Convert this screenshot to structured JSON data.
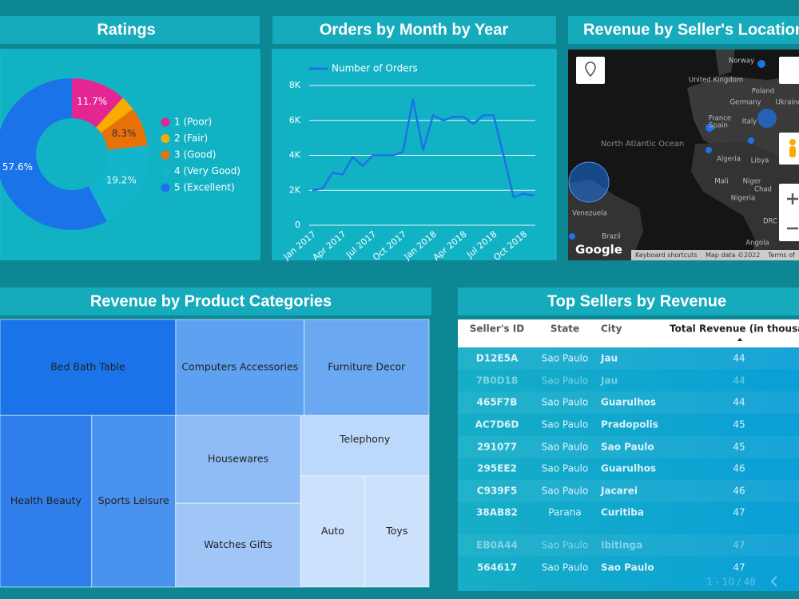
{
  "chart_data": [
    {
      "type": "pie",
      "title": "Ratings",
      "categories": [
        "1 (Poor)",
        "2 (Fair)",
        "3 (Good)",
        "4 (Very Good)",
        "5 (Excellent)"
      ],
      "values": [
        11.7,
        3.2,
        8.3,
        19.2,
        57.6
      ],
      "value_labels": [
        "11.7%",
        null,
        "8.3%",
        "19.2%",
        "57.6%"
      ],
      "colors": [
        "#e52592",
        "#f9ab00",
        "#e8710a",
        "#12b5cb",
        "#1a73e8"
      ],
      "donut": true
    },
    {
      "type": "line",
      "title": "Orders by Month by Year",
      "categories": [
        "Jan 2017",
        null,
        null,
        "Apr 2017",
        null,
        null,
        "Jul 2017",
        null,
        null,
        "Oct 2017",
        null,
        null,
        "Jan 2018",
        null,
        null,
        "Apr 2018",
        null,
        null,
        "Jul 2018",
        null,
        null,
        "Oct 2018",
        null
      ],
      "series": [
        {
          "name": "Number of Orders",
          "color": "#1a73e8",
          "values": [
            2000,
            2100,
            3000,
            2900,
            3900,
            3400,
            4000,
            4000,
            4000,
            4200,
            7200,
            4300,
            6300,
            6000,
            6200,
            6200,
            5800,
            6300,
            6300,
            4000,
            1600,
            1800,
            1700
          ]
        }
      ],
      "ylim": [
        0,
        8000
      ],
      "yticks": [
        0,
        {
          "value": 2000,
          "label": "2K"
        },
        {
          "value": 4000,
          "label": "4K"
        },
        {
          "value": 6000,
          "label": "6K"
        },
        {
          "value": 8000,
          "label": "8K"
        }
      ],
      "grid": true,
      "legend": "top"
    },
    {
      "type": "treemap",
      "title": "Revenue by Product Categories",
      "categories": [
        "Bed Bath Table",
        "Computers Accessories",
        "Furniture Decor",
        "Health Beauty",
        "Sports Leisure",
        "Housewares",
        "Watches Gifts",
        "Telephony",
        "Auto",
        "Toys"
      ],
      "values": [
        26300,
        19200,
        18700,
        24500,
        22400,
        17100,
        16300,
        12100,
        11100,
        11100
      ],
      "colors": [
        "#1a73e8",
        "#5ea1f0",
        "#6aa9f2",
        "#2f80ec",
        "#4a92ef",
        "#8fbcf6",
        "#a0c6f7",
        "#bcd8fa",
        "#cce1fb",
        "#cce1fb"
      ]
    }
  ],
  "map": {
    "title": "Revenue by Seller's Location",
    "labels": [
      "Norway",
      "United Kingdom",
      "Poland",
      "Germany",
      "Ukraine",
      "France",
      "Spain",
      "Italy",
      "North Atlantic Ocean",
      "Algeria",
      "Libya",
      "Mali",
      "Niger",
      "Chad",
      "Nigeria",
      "Venezuela",
      "Brazil",
      "Angola",
      "DRC"
    ],
    "logo": "Google",
    "attribution": [
      "Keyboard shortcuts",
      "Map data ©2022",
      "Terms of"
    ]
  },
  "table": {
    "title": "Top Sellers by Revenue",
    "columns": [
      "Seller's ID",
      "State",
      "City",
      "Total Revenue (in thousand"
    ],
    "rows": [
      [
        "D12E5A",
        "Sao Paulo",
        "Jau",
        "44"
      ],
      [
        "7B0D18",
        "Sao Paulo",
        "Jau",
        "44"
      ],
      [
        "465F7B",
        "Sao Paulo",
        "Guarulhos",
        "44"
      ],
      [
        "AC7D6D",
        "Sao Paulo",
        "Pradopolis",
        "45"
      ],
      [
        "291077",
        "Sao Paulo",
        "Sao Paulo",
        "45"
      ],
      [
        "295EE2",
        "Sao Paulo",
        "Guarulhos",
        "46"
      ],
      [
        "C939F5",
        "Sao Paulo",
        "Jacarei",
        "46"
      ],
      [
        "38AB82",
        "Parana",
        "Curitiba",
        "47"
      ],
      [
        "EB0A44",
        "Sao Paulo",
        "Ibitinga",
        "47"
      ],
      [
        "564617",
        "Sao Paulo",
        "Sao Paulo",
        "47"
      ]
    ],
    "pagination": "1 - 10 / 48"
  }
}
